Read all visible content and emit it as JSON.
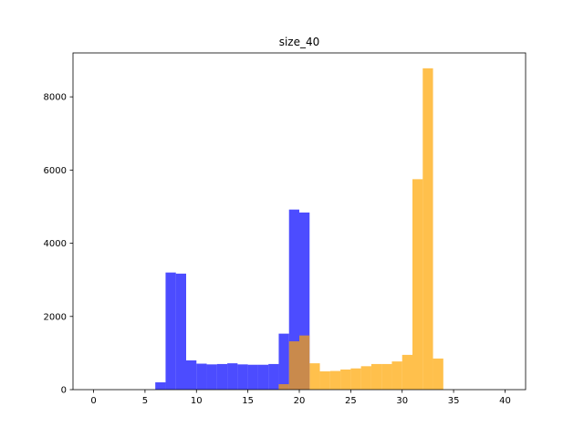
{
  "chart_data": {
    "type": "bar",
    "title": "size_40",
    "xlabel": "",
    "ylabel": "",
    "xlim": [
      -2,
      42
    ],
    "ylim": [
      0,
      9200
    ],
    "xticks": [
      0,
      5,
      10,
      15,
      20,
      25,
      30,
      35,
      40
    ],
    "yticks": [
      0,
      2000,
      4000,
      6000,
      8000
    ],
    "bin_width": 1,
    "series": [
      {
        "color": "#0000ff",
        "opacity": 0.7,
        "bin_starts": [
          6,
          7,
          8,
          9,
          10,
          11,
          12,
          13,
          14,
          15,
          16,
          17,
          18,
          19,
          20,
          21
        ],
        "values": [
          200,
          3200,
          3170,
          800,
          710,
          690,
          700,
          720,
          690,
          680,
          680,
          700,
          1530,
          4920,
          4840,
          0
        ]
      },
      {
        "color": "#ffa500",
        "opacity": 0.7,
        "bin_starts": [
          18,
          19,
          20,
          21,
          22,
          23,
          24,
          25,
          26,
          27,
          28,
          29,
          30,
          31,
          32,
          33
        ],
        "values": [
          150,
          1320,
          1480,
          720,
          500,
          510,
          550,
          580,
          640,
          700,
          700,
          770,
          950,
          5750,
          8780,
          850
        ]
      }
    ]
  }
}
